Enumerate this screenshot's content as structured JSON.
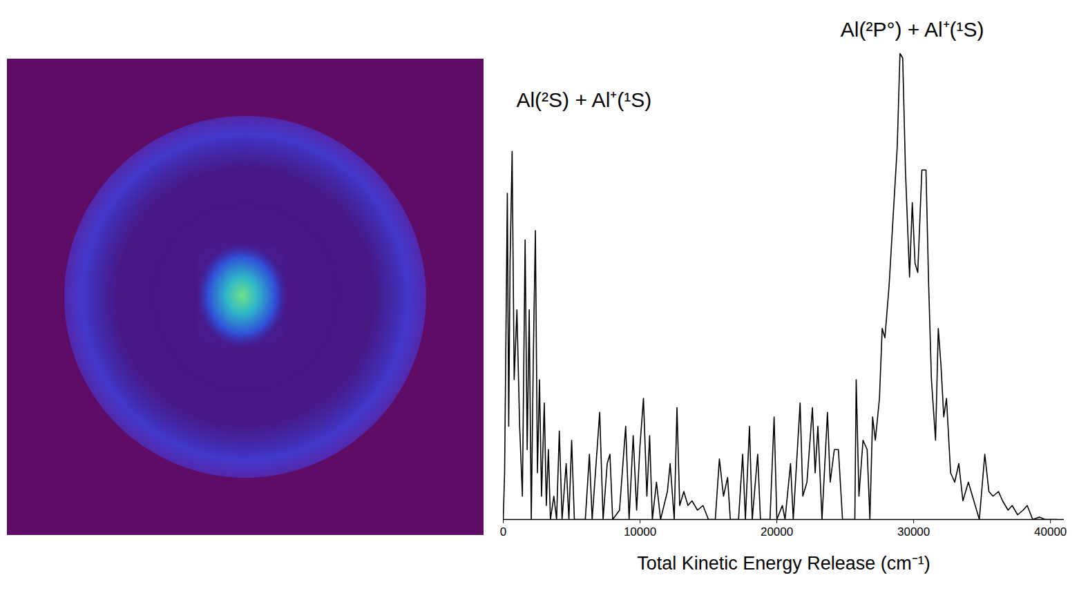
{
  "chart_data": {
    "type": "line",
    "x_label": "Total Kinetic Energy Release (cm⁻¹)",
    "color": "#000000",
    "xlim": [
      0,
      41000
    ],
    "xticks": [
      0,
      10000,
      20000,
      30000,
      40000
    ],
    "ylim": [
      0,
      100
    ],
    "tick_labels": "x",
    "grid": false,
    "annotations": [
      {
        "text": "Al(²S) + Al⁺(¹S)",
        "x": 5900,
        "y": 90
      },
      {
        "text": "Al(²P°) + Al⁺(¹S)",
        "x": 29900,
        "y": 105
      }
    ],
    "x": [
      0,
      100,
      200,
      300,
      400,
      500,
      650,
      800,
      1000,
      1200,
      1400,
      1600,
      1750,
      1900,
      2050,
      2200,
      2350,
      2500,
      2650,
      2800,
      3000,
      3150,
      3300,
      3450,
      3700,
      3900,
      4100,
      4300,
      4600,
      4800,
      5000,
      5200,
      6000,
      6300,
      6500,
      7050,
      7300,
      7600,
      7800,
      8000,
      8500,
      8950,
      9200,
      9500,
      9750,
      10000,
      10250,
      10500,
      10700,
      10900,
      11200,
      11500,
      12000,
      12200,
      12500,
      12700,
      12900,
      13200,
      13500,
      13800,
      14200,
      14600,
      15000,
      15500,
      15800,
      16100,
      16400,
      16600,
      17200,
      17500,
      17700,
      18000,
      18200,
      18600,
      18800,
      19500,
      19800,
      20000,
      20400,
      20600,
      21000,
      21200,
      21700,
      21900,
      22200,
      22600,
      22800,
      23000,
      23300,
      23700,
      23900,
      24200,
      24500,
      24800,
      25700,
      25800,
      26000,
      26300,
      26600,
      26800,
      27000,
      27200,
      27500,
      27700,
      27900,
      28200,
      28500,
      28800,
      29000,
      29200,
      29400,
      29700,
      29900,
      30100,
      30300,
      30600,
      30900,
      31100,
      31300,
      31600,
      31800,
      32000,
      32200,
      32400,
      32700,
      33000,
      33300,
      33600,
      34000,
      34400,
      34800,
      35200,
      35500,
      35800,
      36200,
      36500,
      36900,
      37200,
      37600,
      38000,
      38300,
      38700,
      39200,
      39600,
      40500
    ],
    "values": [
      0,
      10,
      40,
      70,
      20,
      55,
      79,
      30,
      45,
      20,
      5,
      60,
      15,
      45,
      0,
      35,
      62,
      10,
      30,
      5,
      25,
      3,
      15,
      0,
      5,
      0,
      19,
      0,
      12,
      0,
      17,
      0,
      0,
      14,
      0,
      23,
      0,
      12,
      14,
      0,
      2,
      20,
      0,
      18,
      2,
      16,
      26,
      5,
      18,
      0,
      8,
      0,
      6,
      12,
      0,
      24,
      3,
      6,
      3,
      4,
      2,
      3,
      0,
      0,
      13,
      5,
      9,
      0,
      0,
      14,
      0,
      20,
      0,
      14,
      0,
      0,
      22,
      0,
      3,
      0,
      12,
      0,
      25,
      5,
      8,
      24,
      10,
      20,
      0,
      23,
      8,
      15,
      15,
      0,
      0,
      30,
      5,
      17,
      15,
      0,
      22,
      17,
      26,
      41,
      39,
      50,
      65,
      80,
      100,
      99,
      75,
      52,
      68,
      55,
      53,
      75,
      75,
      50,
      30,
      17,
      41,
      33,
      22,
      26,
      10,
      8,
      12,
      4,
      8,
      4,
      0,
      14,
      6,
      5,
      6,
      4,
      2,
      3,
      1,
      2,
      3,
      0,
      0.5,
      0,
      0
    ]
  }
}
